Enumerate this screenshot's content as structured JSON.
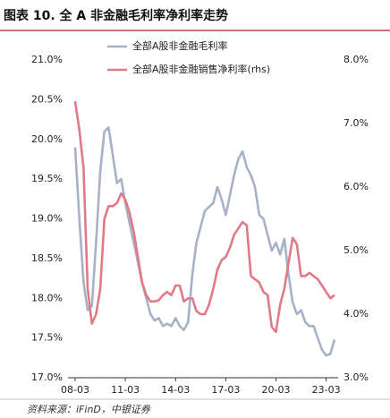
{
  "title": "图表 10. 全 A 非金融毛利率净利率走势",
  "source": "资料来源：iFinD，中银证券",
  "chart_data": {
    "type": "line",
    "categories": [
      "08-03",
      null,
      null,
      null,
      null,
      null,
      null,
      null,
      null,
      null,
      null,
      null,
      "11-03",
      null,
      null,
      null,
      null,
      null,
      null,
      null,
      null,
      null,
      null,
      null,
      "14-03",
      null,
      null,
      null,
      null,
      null,
      null,
      null,
      null,
      null,
      null,
      null,
      "17-03",
      null,
      null,
      null,
      null,
      null,
      null,
      null,
      null,
      null,
      null,
      null,
      "20-03",
      null,
      null,
      null,
      null,
      null,
      null,
      null,
      null,
      null,
      null,
      null,
      "23-03",
      null,
      null
    ],
    "series": [
      {
        "name": "全部A股非金融毛利率",
        "color": "#a7b1c8",
        "values": [
          19.9,
          19.0,
          18.2,
          17.85,
          17.9,
          18.7,
          19.6,
          20.1,
          20.15,
          19.8,
          19.45,
          19.5,
          19.2,
          18.95,
          18.7,
          18.45,
          18.2,
          18.0,
          17.8,
          17.72,
          17.75,
          17.65,
          17.68,
          17.65,
          17.75,
          17.65,
          17.6,
          17.7,
          18.3,
          18.7,
          18.9,
          19.1,
          19.15,
          19.2,
          19.4,
          19.25,
          19.05,
          19.3,
          19.55,
          19.75,
          19.85,
          19.65,
          19.55,
          19.4,
          19.05,
          19.0,
          18.8,
          18.6,
          18.7,
          18.55,
          18.75,
          18.3,
          17.95,
          17.8,
          17.85,
          17.7,
          17.65,
          17.65,
          17.5,
          17.35,
          17.28,
          17.3,
          17.48
        ]
      },
      {
        "name": "全部A股非金融销售净利率(rhs)",
        "color": "#df7a86",
        "axis": "y2",
        "values": [
          7.35,
          6.9,
          6.3,
          4.4,
          3.85,
          4.0,
          4.4,
          5.5,
          5.7,
          5.7,
          5.75,
          5.9,
          5.8,
          5.6,
          5.3,
          4.9,
          4.5,
          4.3,
          4.2,
          4.2,
          4.22,
          4.3,
          4.35,
          4.3,
          4.45,
          4.45,
          4.2,
          4.25,
          4.25,
          4.05,
          4.0,
          4.0,
          4.15,
          4.4,
          4.7,
          4.85,
          4.9,
          5.05,
          5.25,
          5.35,
          5.45,
          5.4,
          4.6,
          4.55,
          4.5,
          4.35,
          4.3,
          3.8,
          3.72,
          4.15,
          4.4,
          4.8,
          5.2,
          5.1,
          4.6,
          4.6,
          4.65,
          4.6,
          4.55,
          4.45,
          4.35,
          4.25,
          4.3
        ]
      }
    ],
    "ylim": [
      17.0,
      21.0
    ],
    "yticks": [
      {
        "value": 17.0,
        "label": "17.0%"
      },
      {
        "value": 17.5,
        "label": "17.5%"
      },
      {
        "value": 18.0,
        "label": "18.0%"
      },
      {
        "value": 18.5,
        "label": "18.5%"
      },
      {
        "value": 19.0,
        "label": "19.0%"
      },
      {
        "value": 19.5,
        "label": "19.5%"
      },
      {
        "value": 20.0,
        "label": "20.0%"
      },
      {
        "value": 20.5,
        "label": "20.5%"
      },
      {
        "value": 21.0,
        "label": "21.0%"
      }
    ],
    "y2lim": [
      3.0,
      8.0
    ],
    "y2ticks": [
      {
        "value": 3.0,
        "label": "3.0%"
      },
      {
        "value": 4.0,
        "label": "4.0%"
      },
      {
        "value": 5.0,
        "label": "5.0%"
      },
      {
        "value": 6.0,
        "label": "6.0%"
      },
      {
        "value": 7.0,
        "label": "7.0%"
      },
      {
        "value": 8.0,
        "label": "8.0%"
      }
    ],
    "grid": false,
    "legend": "top"
  }
}
